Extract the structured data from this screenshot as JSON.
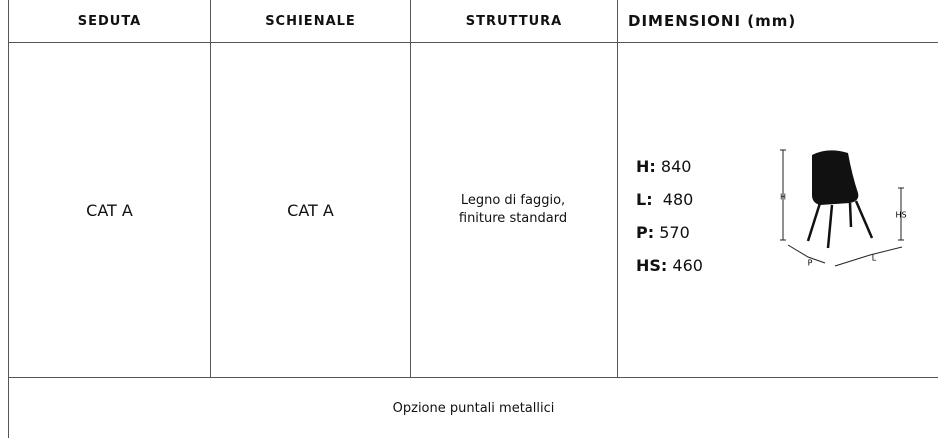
{
  "table": {
    "headers": [
      "SEDUTA",
      "SCHIENALE",
      "STRUTTURA",
      "DIMENSIONI (mm)"
    ],
    "row": [
      "CAT A",
      "CAT A",
      "Legno di faggio, finiture standard"
    ],
    "dimensions": [
      {
        "label": "H:",
        "value": "840"
      },
      {
        "label": "L:",
        "value": "480"
      },
      {
        "label": "P:",
        "value": "570"
      },
      {
        "label": "HS:",
        "value": "460"
      }
    ],
    "diagram_labels": [
      "H",
      "HS",
      "P",
      "L"
    ],
    "footer": "Opzione puntali metallici"
  }
}
